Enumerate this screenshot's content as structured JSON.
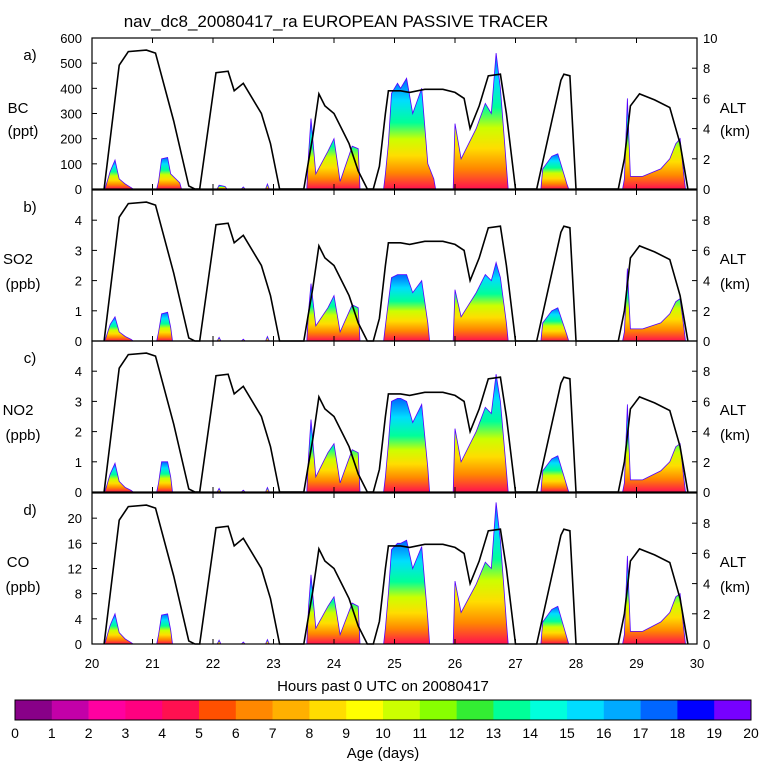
{
  "chart_data": {
    "type": "area",
    "title": "nav_dc8_20080417_ra EUROPEAN PASSIVE TRACER",
    "xlabel": "Hours past 0 UTC on 20080417",
    "x_ticks": [
      "20",
      "21",
      "22",
      "23",
      "24",
      "25",
      "26",
      "27",
      "28",
      "29",
      "30"
    ],
    "xlim": [
      20,
      30
    ],
    "altitude": {
      "label": "ALT",
      "unit": "(km)",
      "ylim": [
        0,
        10
      ],
      "tick_labels": [
        "0",
        "2",
        "4",
        "6",
        "8"
      ],
      "tick_labels_top": [
        "0",
        "2",
        "4",
        "6",
        "8",
        "10"
      ],
      "profile": [
        [
          20.2,
          0
        ],
        [
          20.45,
          8.2
        ],
        [
          20.6,
          9.1
        ],
        [
          20.9,
          9.2
        ],
        [
          21.05,
          9.0
        ],
        [
          21.35,
          4.5
        ],
        [
          21.6,
          0.2
        ],
        [
          21.7,
          0
        ],
        [
          21.78,
          0
        ],
        [
          22.05,
          7.7
        ],
        [
          22.25,
          7.8
        ],
        [
          22.35,
          6.5
        ],
        [
          22.5,
          7.0
        ],
        [
          22.8,
          5.0
        ],
        [
          22.95,
          3.0
        ],
        [
          23.1,
          0
        ],
        [
          23.5,
          0
        ],
        [
          23.65,
          3.5
        ],
        [
          23.75,
          6.3
        ],
        [
          23.85,
          5.5
        ],
        [
          24.0,
          5.0
        ],
        [
          24.15,
          3.8
        ],
        [
          24.25,
          3.0
        ],
        [
          24.4,
          1.2
        ],
        [
          24.55,
          0
        ],
        [
          24.65,
          0
        ],
        [
          24.75,
          1.5
        ],
        [
          24.85,
          5.0
        ],
        [
          24.9,
          6.5
        ],
        [
          25.1,
          6.5
        ],
        [
          25.25,
          6.4
        ],
        [
          25.5,
          6.6
        ],
        [
          25.8,
          6.6
        ],
        [
          26.0,
          6.4
        ],
        [
          26.15,
          6.0
        ],
        [
          26.25,
          4.0
        ],
        [
          26.4,
          5.5
        ],
        [
          26.55,
          7.5
        ],
        [
          26.75,
          7.6
        ],
        [
          26.85,
          5.0
        ],
        [
          27.0,
          0
        ],
        [
          27.35,
          0
        ],
        [
          27.6,
          4.5
        ],
        [
          27.75,
          7.2
        ],
        [
          27.8,
          7.6
        ],
        [
          27.9,
          7.5
        ],
        [
          28.0,
          0
        ],
        [
          28.7,
          0
        ],
        [
          28.8,
          2.0
        ],
        [
          28.9,
          5.5
        ],
        [
          29.05,
          6.3
        ],
        [
          29.3,
          5.9
        ],
        [
          29.55,
          5.4
        ],
        [
          29.72,
          3.0
        ],
        [
          29.85,
          0
        ]
      ]
    },
    "panels": [
      {
        "letter": "a)",
        "species": "BC",
        "unit": "(ppt)",
        "ylim": [
          0,
          600
        ],
        "y_ticks": [
          "0",
          "100",
          "200",
          "300",
          "400",
          "500",
          "600"
        ],
        "series": [
          [
            20.22,
            5
          ],
          [
            20.3,
            70
          ],
          [
            20.38,
            115
          ],
          [
            20.45,
            40
          ],
          [
            20.55,
            20
          ],
          [
            20.65,
            5
          ],
          [
            21.1,
            30
          ],
          [
            21.15,
            120
          ],
          [
            21.25,
            125
          ],
          [
            21.3,
            60
          ],
          [
            21.45,
            25
          ],
          [
            22.1,
            15
          ],
          [
            22.2,
            10
          ],
          [
            22.5,
            8
          ],
          [
            22.9,
            20
          ],
          [
            23.58,
            140
          ],
          [
            23.62,
            280
          ],
          [
            23.7,
            60
          ],
          [
            23.9,
            150
          ],
          [
            24.0,
            200
          ],
          [
            24.1,
            30
          ],
          [
            24.3,
            170
          ],
          [
            24.4,
            160
          ],
          [
            24.85,
            60
          ],
          [
            24.9,
            180
          ],
          [
            24.95,
            380
          ],
          [
            25.05,
            420
          ],
          [
            25.1,
            400
          ],
          [
            25.2,
            440
          ],
          [
            25.3,
            300
          ],
          [
            25.45,
            400
          ],
          [
            25.55,
            100
          ],
          [
            25.65,
            40
          ],
          [
            26.0,
            260
          ],
          [
            26.1,
            120
          ],
          [
            26.35,
            240
          ],
          [
            26.5,
            340
          ],
          [
            26.6,
            300
          ],
          [
            26.68,
            540
          ],
          [
            26.75,
            400
          ],
          [
            26.85,
            90
          ],
          [
            27.45,
            80
          ],
          [
            27.6,
            130
          ],
          [
            27.7,
            140
          ],
          [
            27.85,
            20
          ],
          [
            28.8,
            40
          ],
          [
            28.85,
            360
          ],
          [
            28.9,
            50
          ],
          [
            29.1,
            50
          ],
          [
            29.4,
            80
          ],
          [
            29.55,
            120
          ],
          [
            29.65,
            180
          ],
          [
            29.72,
            200
          ],
          [
            29.78,
            60
          ]
        ]
      },
      {
        "letter": "b)",
        "species": "SO2",
        "unit": "(ppb)",
        "ylim": [
          0,
          5
        ],
        "y_ticks": [
          "0",
          "1",
          "2",
          "3",
          "4"
        ],
        "series": [
          [
            20.22,
            0.05
          ],
          [
            20.3,
            0.55
          ],
          [
            20.38,
            0.8
          ],
          [
            20.45,
            0.3
          ],
          [
            20.55,
            0.15
          ],
          [
            20.65,
            0.05
          ],
          [
            21.1,
            0.3
          ],
          [
            21.15,
            0.9
          ],
          [
            21.25,
            0.95
          ],
          [
            21.3,
            0.45
          ],
          [
            22.1,
            0.12
          ],
          [
            22.5,
            0.06
          ],
          [
            22.9,
            0.15
          ],
          [
            23.58,
            1.0
          ],
          [
            23.62,
            1.9
          ],
          [
            23.7,
            0.5
          ],
          [
            23.9,
            1.1
          ],
          [
            24.0,
            1.5
          ],
          [
            24.1,
            0.3
          ],
          [
            24.3,
            1.2
          ],
          [
            24.4,
            1.1
          ],
          [
            24.85,
            0.5
          ],
          [
            24.9,
            1.3
          ],
          [
            24.95,
            2.1
          ],
          [
            25.05,
            2.2
          ],
          [
            25.1,
            2.2
          ],
          [
            25.2,
            2.2
          ],
          [
            25.3,
            1.6
          ],
          [
            25.45,
            2.0
          ],
          [
            25.55,
            0.6
          ],
          [
            26.0,
            1.7
          ],
          [
            26.1,
            0.8
          ],
          [
            26.35,
            1.6
          ],
          [
            26.5,
            2.2
          ],
          [
            26.6,
            2.0
          ],
          [
            26.68,
            2.6
          ],
          [
            26.75,
            2.1
          ],
          [
            26.85,
            0.6
          ],
          [
            27.45,
            0.6
          ],
          [
            27.6,
            1.0
          ],
          [
            27.7,
            1.1
          ],
          [
            27.85,
            0.2
          ],
          [
            28.8,
            0.3
          ],
          [
            28.85,
            2.4
          ],
          [
            28.9,
            0.4
          ],
          [
            29.1,
            0.4
          ],
          [
            29.4,
            0.6
          ],
          [
            29.55,
            0.9
          ],
          [
            29.65,
            1.3
          ],
          [
            29.72,
            1.4
          ],
          [
            29.78,
            0.5
          ]
        ]
      },
      {
        "letter": "c)",
        "species": "NO2",
        "unit": "(ppb)",
        "ylim": [
          0,
          5
        ],
        "y_ticks": [
          "0",
          "1",
          "2",
          "3",
          "4"
        ],
        "series": [
          [
            20.22,
            0.05
          ],
          [
            20.3,
            0.6
          ],
          [
            20.38,
            0.95
          ],
          [
            20.45,
            0.35
          ],
          [
            20.55,
            0.15
          ],
          [
            20.65,
            0.05
          ],
          [
            21.1,
            0.3
          ],
          [
            21.15,
            1.0
          ],
          [
            21.25,
            1.0
          ],
          [
            21.3,
            0.5
          ],
          [
            22.1,
            0.12
          ],
          [
            22.5,
            0.06
          ],
          [
            22.9,
            0.15
          ],
          [
            23.58,
            1.2
          ],
          [
            23.62,
            2.4
          ],
          [
            23.7,
            0.5
          ],
          [
            23.9,
            1.3
          ],
          [
            24.0,
            1.6
          ],
          [
            24.1,
            0.3
          ],
          [
            24.3,
            1.4
          ],
          [
            24.4,
            1.3
          ],
          [
            24.85,
            0.5
          ],
          [
            24.9,
            1.6
          ],
          [
            24.95,
            3.0
          ],
          [
            25.05,
            3.1
          ],
          [
            25.1,
            3.1
          ],
          [
            25.2,
            3.0
          ],
          [
            25.3,
            2.3
          ],
          [
            25.45,
            2.9
          ],
          [
            25.55,
            0.8
          ],
          [
            26.0,
            2.1
          ],
          [
            26.1,
            1.0
          ],
          [
            26.35,
            2.0
          ],
          [
            26.5,
            2.8
          ],
          [
            26.6,
            2.6
          ],
          [
            26.68,
            3.9
          ],
          [
            26.75,
            3.0
          ],
          [
            26.85,
            0.7
          ],
          [
            27.45,
            0.7
          ],
          [
            27.6,
            1.1
          ],
          [
            27.7,
            1.2
          ],
          [
            27.85,
            0.2
          ],
          [
            28.8,
            0.3
          ],
          [
            28.85,
            2.9
          ],
          [
            28.9,
            0.4
          ],
          [
            29.1,
            0.4
          ],
          [
            29.4,
            0.7
          ],
          [
            29.55,
            1.0
          ],
          [
            29.65,
            1.5
          ],
          [
            29.72,
            1.6
          ],
          [
            29.78,
            0.5
          ]
        ]
      },
      {
        "letter": "d)",
        "species": "CO",
        "unit": "(ppb)",
        "ylim": [
          0,
          24
        ],
        "y_ticks": [
          "0",
          "4",
          "8",
          "12",
          "16",
          "20"
        ],
        "series": [
          [
            20.22,
            0.3
          ],
          [
            20.3,
            3.0
          ],
          [
            20.38,
            4.8
          ],
          [
            20.45,
            1.8
          ],
          [
            20.55,
            0.8
          ],
          [
            20.65,
            0.2
          ],
          [
            21.1,
            1.5
          ],
          [
            21.15,
            4.6
          ],
          [
            21.25,
            4.8
          ],
          [
            21.3,
            2.2
          ],
          [
            22.1,
            0.6
          ],
          [
            22.5,
            0.3
          ],
          [
            22.9,
            0.7
          ],
          [
            23.58,
            6.0
          ],
          [
            23.62,
            11.0
          ],
          [
            23.7,
            2.5
          ],
          [
            23.9,
            6.0
          ],
          [
            24.0,
            7.5
          ],
          [
            24.1,
            1.5
          ],
          [
            24.3,
            6.5
          ],
          [
            24.4,
            6.0
          ],
          [
            24.85,
            2.5
          ],
          [
            24.9,
            8.0
          ],
          [
            24.95,
            15.0
          ],
          [
            25.05,
            16.0
          ],
          [
            25.1,
            16.0
          ],
          [
            25.2,
            16.5
          ],
          [
            25.3,
            12.0
          ],
          [
            25.45,
            15.5
          ],
          [
            25.55,
            4.0
          ],
          [
            26.0,
            10.0
          ],
          [
            26.1,
            5.0
          ],
          [
            26.35,
            9.5
          ],
          [
            26.5,
            13.0
          ],
          [
            26.6,
            12.0
          ],
          [
            26.68,
            22.5
          ],
          [
            26.75,
            16.5
          ],
          [
            26.85,
            3.5
          ],
          [
            27.45,
            3.5
          ],
          [
            27.6,
            5.5
          ],
          [
            27.7,
            6.0
          ],
          [
            27.85,
            1.0
          ],
          [
            28.8,
            1.5
          ],
          [
            28.85,
            14.0
          ],
          [
            28.9,
            2.0
          ],
          [
            29.1,
            2.0
          ],
          [
            29.4,
            3.5
          ],
          [
            29.55,
            5.0
          ],
          [
            29.65,
            7.5
          ],
          [
            29.72,
            8.0
          ],
          [
            29.78,
            2.5
          ]
        ]
      }
    ],
    "colorbar": {
      "label": "Age (days)",
      "ticks": [
        "0",
        "1",
        "2",
        "3",
        "4",
        "5",
        "6",
        "7",
        "8",
        "9",
        "10",
        "11",
        "12",
        "13",
        "14",
        "15",
        "16",
        "17",
        "18",
        "19",
        "20"
      ],
      "colors": [
        "#880088",
        "#c300a8",
        "#ff00a0",
        "#ff0080",
        "#ff1050",
        "#ff5000",
        "#ff8800",
        "#ffb000",
        "#ffdd00",
        "#ffff00",
        "#ccff00",
        "#88ff00",
        "#33ee33",
        "#00ff99",
        "#00ffdd",
        "#00ddff",
        "#00aaff",
        "#0066ff",
        "#0000ff",
        "#7700ff"
      ]
    }
  }
}
